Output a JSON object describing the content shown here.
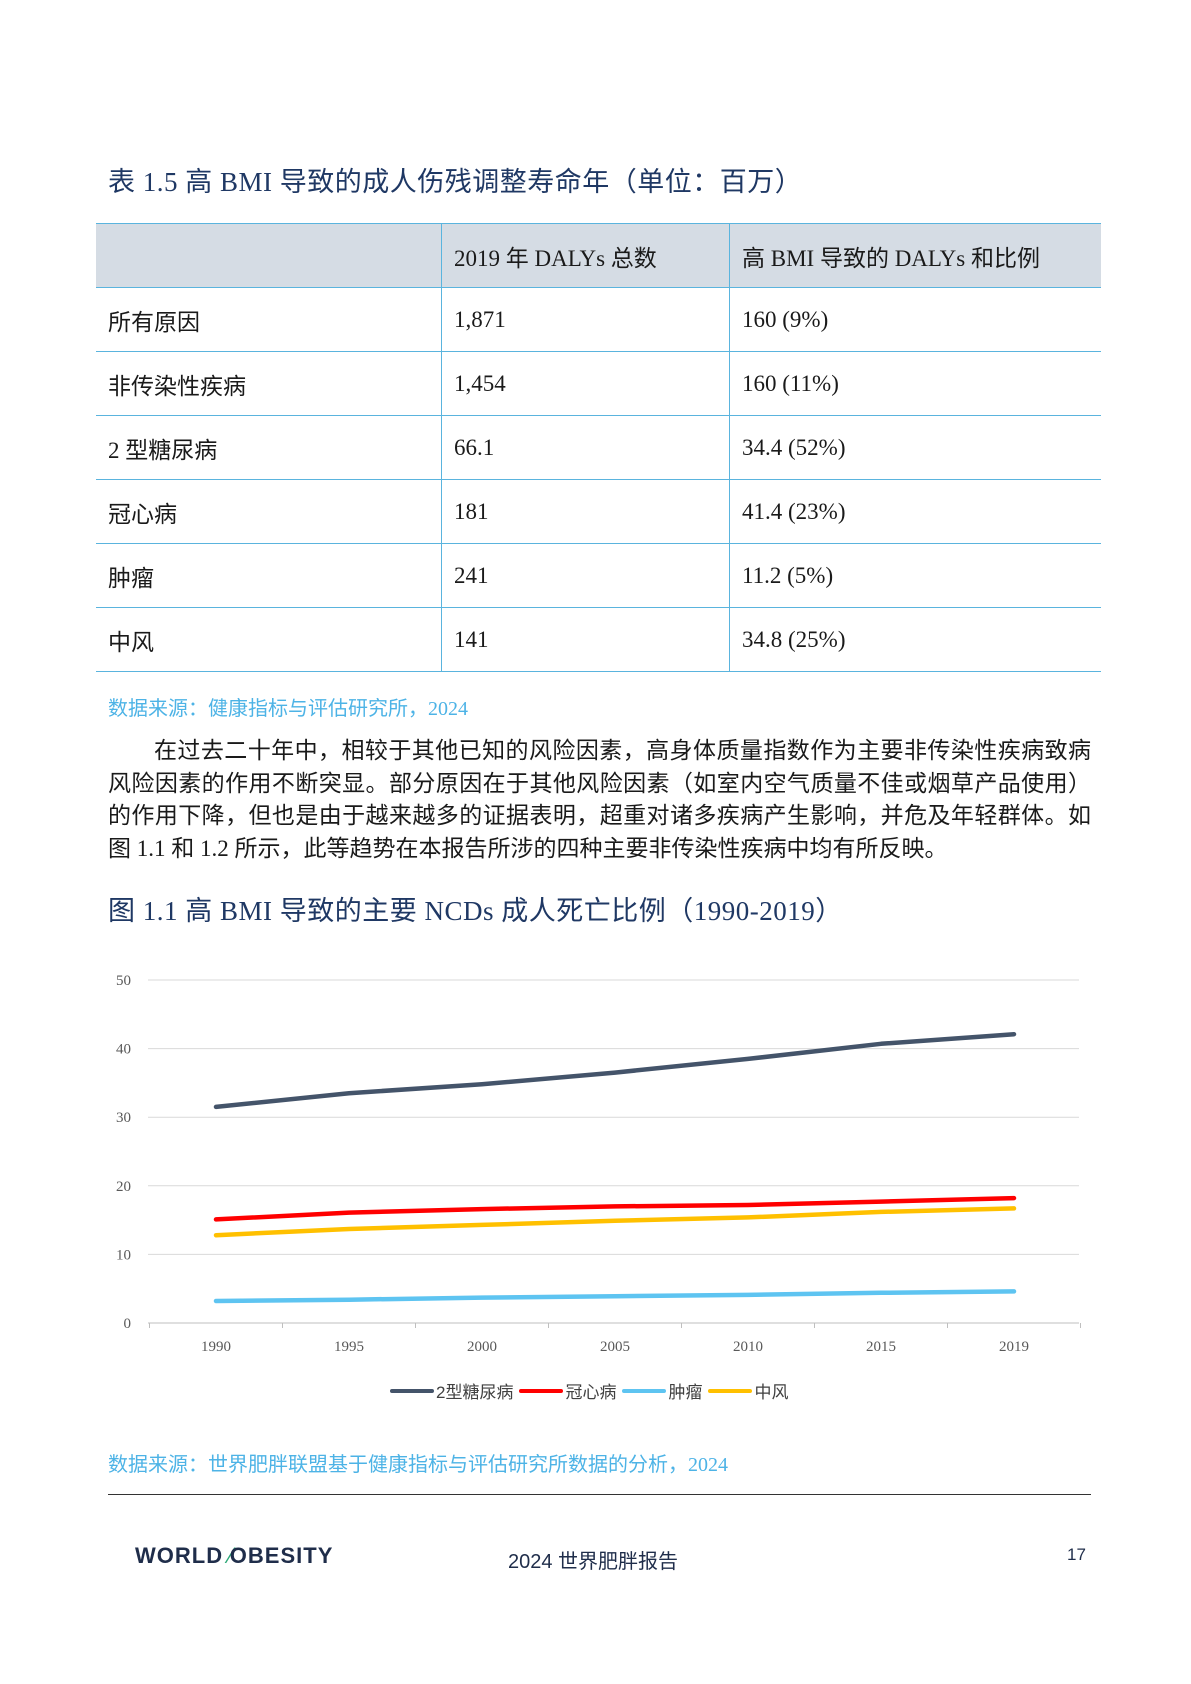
{
  "table": {
    "title": "表 1.5 高 BMI 导致的成人伤残调整寿命年（单位：百万）",
    "headers": [
      "",
      "2019 年 DALYs 总数",
      "高 BMI 导致的 DALYs 和比例"
    ],
    "rows": [
      [
        "所有原因",
        "1,871",
        "160 (9%)"
      ],
      [
        "非传染性疾病",
        "1,454",
        "160 (11%)"
      ],
      [
        "2 型糖尿病",
        "66.1",
        "34.4 (52%)"
      ],
      [
        "冠心病",
        "181",
        "41.4 (23%)"
      ],
      [
        "肿瘤",
        "241",
        "11.2 (5%)"
      ],
      [
        "中风",
        "141",
        "34.8 (25%)"
      ]
    ],
    "source": "数据来源：健康指标与评估研究所，2024"
  },
  "paragraph": "在过去二十年中，相较于其他已知的风险因素，高身体质量指数作为主要非传染性疾病致病风险因素的作用不断突显。部分原因在于其他风险因素（如室内空气质量不佳或烟草产品使用）的作用下降，但也是由于越来越多的证据表明，超重对诸多疾病产生影响，并危及年轻群体。如图 1.1 和 1.2 所示，此等趋势在本报告所涉的四种主要非传染性疾病中均有所反映。",
  "figure": {
    "title": "图 1.1 高 BMI 导致的主要 NCDs 成人死亡比例（1990-2019）",
    "source": "数据来源：世界肥胖联盟基于健康指标与评估研究所数据的分析，2024"
  },
  "chart_data": {
    "type": "line",
    "x": [
      1990,
      1995,
      2000,
      2005,
      2010,
      2015,
      2019
    ],
    "ylim": [
      0,
      50
    ],
    "yticks": [
      0,
      10,
      20,
      30,
      40,
      50
    ],
    "grid": true,
    "legend_position": "bottom",
    "series": [
      {
        "name": "2型糖尿病",
        "color": "#44546a",
        "values": [
          31.5,
          33.5,
          34.8,
          36.5,
          38.5,
          40.7,
          42.1
        ]
      },
      {
        "name": "冠心病",
        "color": "#ff0000",
        "values": [
          15.1,
          16.1,
          16.6,
          17.0,
          17.2,
          17.7,
          18.2
        ]
      },
      {
        "name": "肿瘤",
        "color": "#5ec4f1",
        "values": [
          3.2,
          3.4,
          3.7,
          3.9,
          4.1,
          4.4,
          4.6
        ]
      },
      {
        "name": "中风",
        "color": "#ffc000",
        "values": [
          12.8,
          13.7,
          14.3,
          14.9,
          15.4,
          16.2,
          16.7
        ]
      }
    ]
  },
  "footer": {
    "logo_text_left": "W",
    "logo_text_mid": "RLD",
    "logo_text_right": "BESITY",
    "report_name": "2024 世界肥胖报告",
    "page_number": "17"
  }
}
